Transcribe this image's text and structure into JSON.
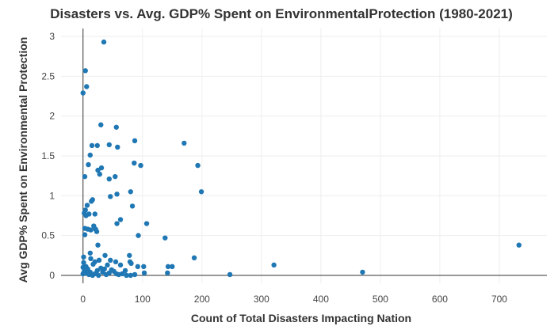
{
  "chart_data": {
    "type": "scatter",
    "title": "Disasters vs. Avg. GDP% Spent on EnvironmentalProtection (1980-2021)",
    "xlabel": "Count of Total Disasters Impacting Nation",
    "ylabel": "Avg GDP% Spent on Environmental Protection",
    "xlim": [
      -37,
      780
    ],
    "ylim": [
      -0.1,
      3.1
    ],
    "xticks": [
      0,
      100,
      200,
      300,
      400,
      500,
      600,
      700
    ],
    "yticks": [
      0,
      0.5,
      1,
      1.5,
      2,
      2.5,
      3
    ],
    "ytick_labels": [
      "0",
      "0.5",
      "1",
      "1.5",
      "2",
      "2.5",
      "3"
    ],
    "grid": true,
    "color": "#1f77b4",
    "points": [
      {
        "x": 35,
        "y": 2.93
      },
      {
        "x": 4,
        "y": 2.57
      },
      {
        "x": 6,
        "y": 2.37
      },
      {
        "x": 0,
        "y": 2.29
      },
      {
        "x": 30,
        "y": 1.89
      },
      {
        "x": 56,
        "y": 1.86
      },
      {
        "x": 87,
        "y": 1.69
      },
      {
        "x": 170,
        "y": 1.66
      },
      {
        "x": 15,
        "y": 1.63
      },
      {
        "x": 24,
        "y": 1.63
      },
      {
        "x": 44,
        "y": 1.64
      },
      {
        "x": 58,
        "y": 1.61
      },
      {
        "x": 12,
        "y": 1.51
      },
      {
        "x": 9,
        "y": 1.39
      },
      {
        "x": 31,
        "y": 1.35
      },
      {
        "x": 25,
        "y": 1.32
      },
      {
        "x": 86,
        "y": 1.41
      },
      {
        "x": 97,
        "y": 1.38
      },
      {
        "x": 193,
        "y": 1.38
      },
      {
        "x": 28,
        "y": 1.27
      },
      {
        "x": 54,
        "y": 1.24
      },
      {
        "x": 44,
        "y": 1.21
      },
      {
        "x": 3,
        "y": 1.24
      },
      {
        "x": 80,
        "y": 1.05
      },
      {
        "x": 199,
        "y": 1.05
      },
      {
        "x": 57,
        "y": 1.02
      },
      {
        "x": 46,
        "y": 0.99
      },
      {
        "x": 16,
        "y": 0.95
      },
      {
        "x": 14,
        "y": 0.93
      },
      {
        "x": 7,
        "y": 0.88
      },
      {
        "x": 83,
        "y": 0.87
      },
      {
        "x": 4,
        "y": 0.82
      },
      {
        "x": 2,
        "y": 0.78
      },
      {
        "x": 10,
        "y": 0.77
      },
      {
        "x": 20,
        "y": 0.77
      },
      {
        "x": 5,
        "y": 0.75
      },
      {
        "x": 63,
        "y": 0.7
      },
      {
        "x": 57,
        "y": 0.65
      },
      {
        "x": 107,
        "y": 0.65
      },
      {
        "x": 18,
        "y": 0.62
      },
      {
        "x": 3,
        "y": 0.59
      },
      {
        "x": 8,
        "y": 0.58
      },
      {
        "x": 13,
        "y": 0.57
      },
      {
        "x": 21,
        "y": 0.58
      },
      {
        "x": 23,
        "y": 0.55
      },
      {
        "x": 3,
        "y": 0.51
      },
      {
        "x": 93,
        "y": 0.5
      },
      {
        "x": 138,
        "y": 0.47
      },
      {
        "x": 25,
        "y": 0.38
      },
      {
        "x": 733,
        "y": 0.38
      },
      {
        "x": 12,
        "y": 0.28
      },
      {
        "x": 37,
        "y": 0.25
      },
      {
        "x": 78,
        "y": 0.25
      },
      {
        "x": 1,
        "y": 0.23
      },
      {
        "x": 187,
        "y": 0.22
      },
      {
        "x": 13,
        "y": 0.21
      },
      {
        "x": 27,
        "y": 0.19
      },
      {
        "x": 46,
        "y": 0.19
      },
      {
        "x": 55,
        "y": 0.17
      },
      {
        "x": 20,
        "y": 0.17
      },
      {
        "x": 1,
        "y": 0.16
      },
      {
        "x": 79,
        "y": 0.17
      },
      {
        "x": 81,
        "y": 0.15
      },
      {
        "x": 17,
        "y": 0.14
      },
      {
        "x": 41,
        "y": 0.13
      },
      {
        "x": 63,
        "y": 0.13
      },
      {
        "x": 321,
        "y": 0.13
      },
      {
        "x": 5,
        "y": 0.11
      },
      {
        "x": 92,
        "y": 0.11
      },
      {
        "x": 102,
        "y": 0.11
      },
      {
        "x": 143,
        "y": 0.11
      },
      {
        "x": 150,
        "y": 0.11
      },
      {
        "x": 0,
        "y": 0.1
      },
      {
        "x": 30,
        "y": 0.09
      },
      {
        "x": 8,
        "y": 0.08
      },
      {
        "x": 36,
        "y": 0.08
      },
      {
        "x": 48,
        "y": 0.07
      },
      {
        "x": 24,
        "y": 0.06
      },
      {
        "x": 71,
        "y": 0.06
      },
      {
        "x": 2,
        "y": 0.05
      },
      {
        "x": 52,
        "y": 0.05
      },
      {
        "x": 12,
        "y": 0.04
      },
      {
        "x": 33,
        "y": 0.04
      },
      {
        "x": 470,
        "y": 0.04
      },
      {
        "x": 5,
        "y": 0.03
      },
      {
        "x": 44,
        "y": 0.03
      },
      {
        "x": 103,
        "y": 0.03
      },
      {
        "x": 142,
        "y": 0.03
      },
      {
        "x": 20,
        "y": 0.02
      },
      {
        "x": 66,
        "y": 0.02
      },
      {
        "x": 0,
        "y": 0.02
      },
      {
        "x": 56,
        "y": 0.02
      },
      {
        "x": 10,
        "y": 0.01
      },
      {
        "x": 39,
        "y": 0.01
      },
      {
        "x": 60,
        "y": 0.01
      },
      {
        "x": 87,
        "y": 0.01
      },
      {
        "x": 247,
        "y": 0.01
      },
      {
        "x": 16,
        "y": 0.0
      },
      {
        "x": 73,
        "y": 0.0
      },
      {
        "x": 80,
        "y": 0.0
      },
      {
        "x": 26,
        "y": 0.0
      }
    ]
  }
}
